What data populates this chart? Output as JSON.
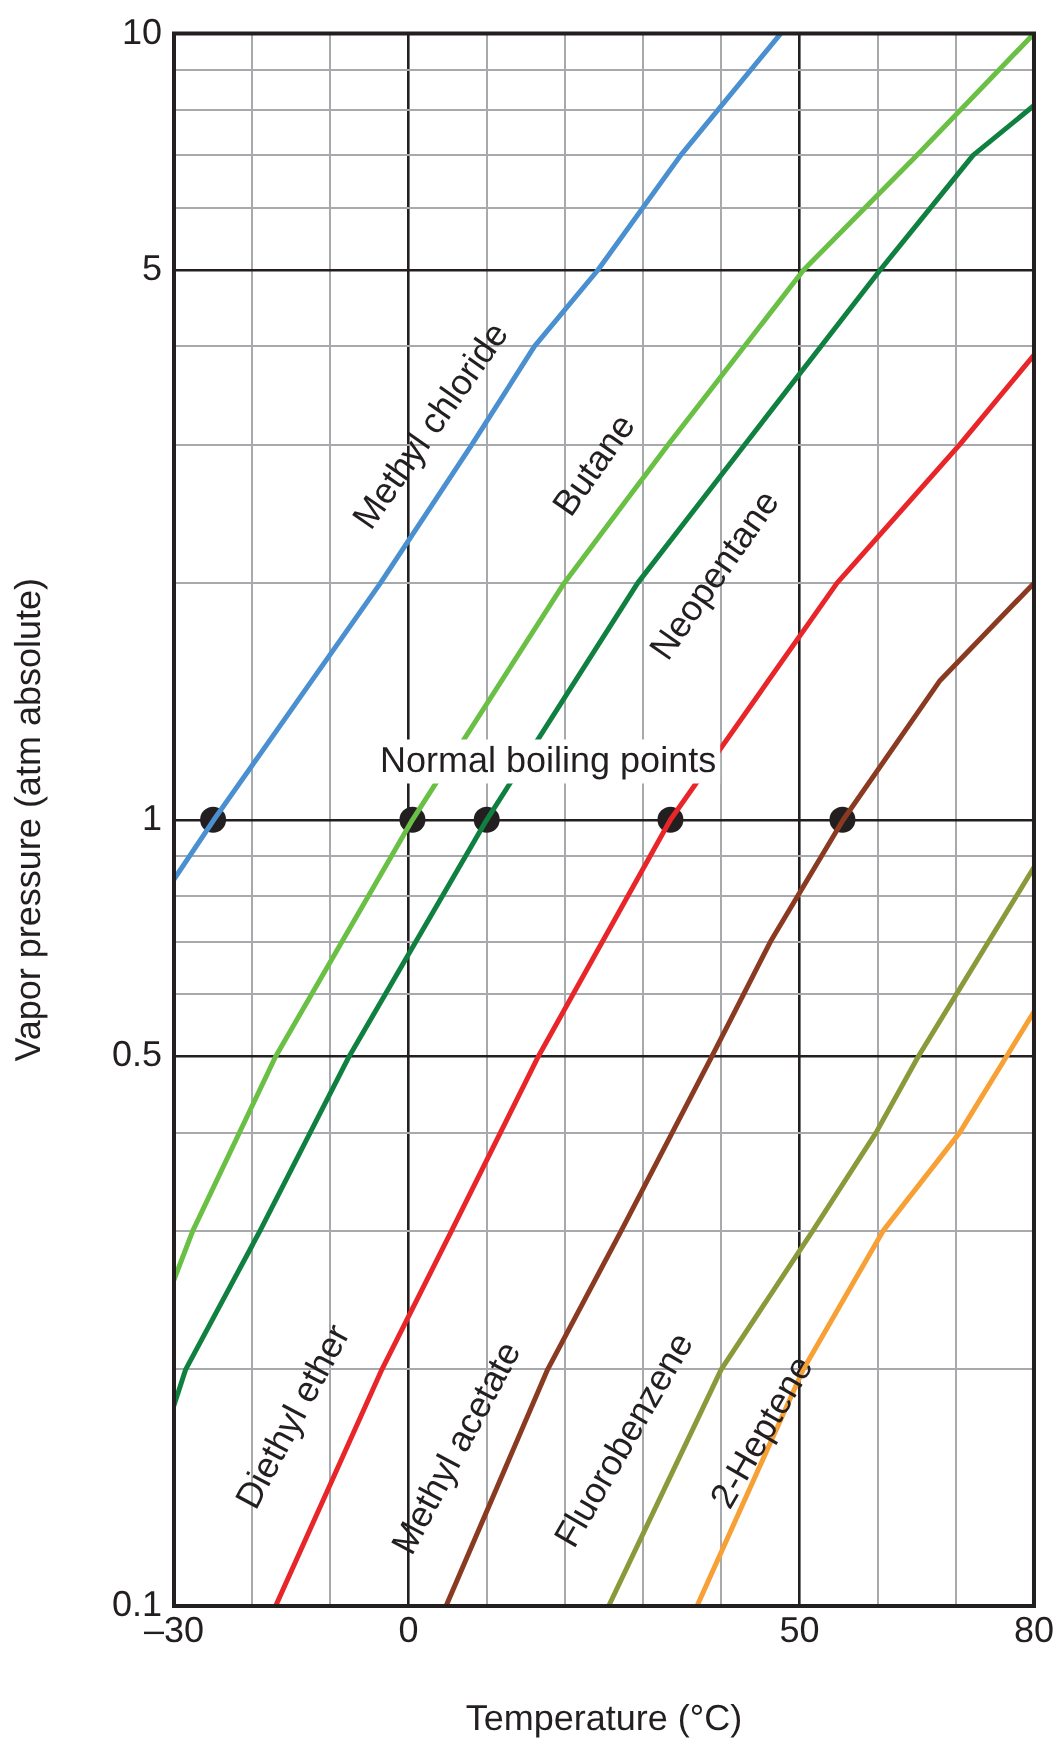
{
  "chart_data": {
    "type": "line",
    "xlabel": "Temperature (°C)",
    "ylabel": "Vapor pressure (atm absolute)",
    "log": "y",
    "grid": true,
    "legend": false,
    "marker": "none",
    "line_style": "solid",
    "xlim": [
      -30,
      80
    ],
    "xticks": [
      {
        "value": -30,
        "label": "–30"
      },
      {
        "value": -20,
        "label": null
      },
      {
        "value": -10,
        "label": null
      },
      0,
      {
        "value": 10,
        "label": null
      },
      {
        "value": 20,
        "label": null
      },
      {
        "value": 30,
        "label": null
      },
      {
        "value": 40,
        "label": null
      },
      50,
      {
        "value": 60,
        "label": null
      },
      {
        "value": 70,
        "label": null
      },
      80
    ],
    "ylim": [
      0.1,
      10
    ],
    "yticks": [
      0.1,
      {
        "value": 0.2,
        "label": null
      },
      {
        "value": 0.3,
        "label": null
      },
      {
        "value": 0.4,
        "label": null
      },
      0.5,
      {
        "value": 0.6,
        "label": null
      },
      {
        "value": 0.7,
        "label": null
      },
      {
        "value": 0.8,
        "label": null
      },
      {
        "value": 0.9,
        "label": null
      },
      1,
      {
        "value": 2,
        "label": null
      },
      {
        "value": 3,
        "label": null
      },
      {
        "value": 4,
        "label": null
      },
      5,
      {
        "value": 6,
        "label": null
      },
      {
        "value": 7,
        "label": null
      },
      {
        "value": 8,
        "label": null
      },
      {
        "value": 9,
        "label": null
      },
      10
    ],
    "series": [
      {
        "name": "Methyl chloride",
        "color": "#4a90d0",
        "x": [
          -30,
          -24.9,
          -3.6,
          8.1,
          16.1,
          24.2,
          34.8,
          47.6
        ],
        "values": [
          0.84,
          1,
          2,
          3,
          4,
          5,
          7,
          10
        ]
      },
      {
        "name": "Butane",
        "color": "#6abf45",
        "x": [
          -30,
          -27.6,
          -17,
          0.5,
          19.9,
          33.2,
          50.5,
          65,
          80
        ],
        "values": [
          0.26,
          0.3,
          0.5,
          1,
          2,
          3,
          5,
          7,
          10
        ]
      },
      {
        "name": "Neopentane",
        "color": "#0f8040",
        "x": [
          -30,
          -28.5,
          -19,
          -7.6,
          10,
          29.3,
          43,
          60.3,
          72.2,
          80
        ],
        "values": [
          0.18,
          0.2,
          0.3,
          0.5,
          1,
          2,
          3,
          5,
          7,
          8.1
        ]
      },
      {
        "name": "Diethyl ether",
        "color": "#e8262a",
        "x": [
          -17,
          -3.4,
          5.5,
          16.6,
          33.5,
          54.8,
          70.5,
          80
        ],
        "values": [
          0.1,
          0.2,
          0.3,
          0.5,
          1,
          2,
          3,
          3.9
        ]
      },
      {
        "name": "Methyl acetate",
        "color": "#8b3a22",
        "x": [
          4.8,
          17.8,
          27.2,
          38.8,
          46.3,
          55.6,
          67.9,
          80
        ],
        "values": [
          0.1,
          0.2,
          0.3,
          0.5,
          0.7,
          1,
          1.5,
          2
        ]
      },
      {
        "name": "Fluorobenzene",
        "color": "#8a9a3a",
        "x": [
          25.6,
          40,
          51.7,
          59.8,
          65.2,
          80
        ],
        "values": [
          0.1,
          0.2,
          0.3,
          0.4,
          0.5,
          0.87
        ]
      },
      {
        "name": "2-Heptene",
        "color": "#f7a035",
        "x": [
          36.9,
          50.5,
          60.7,
          70.5,
          80
        ],
        "values": [
          0.1,
          0.2,
          0.3,
          0.4,
          0.57
        ]
      },
      {
        "type": "scatter",
        "marker": "circle",
        "color": "#231f20",
        "x": [
          -25,
          0.5,
          10,
          33.5,
          55.5
        ],
        "values": [
          1,
          1,
          1,
          1,
          1
        ]
      }
    ],
    "annotations": [
      "Normal boiling points"
    ]
  }
}
